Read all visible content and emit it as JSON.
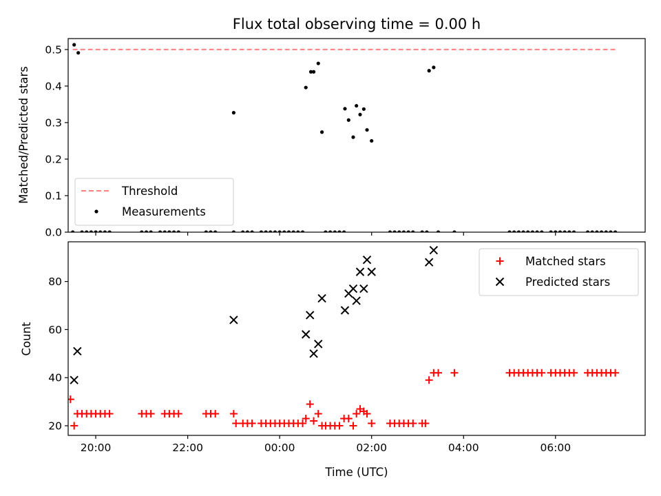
{
  "chart_data": [
    {
      "type": "scatter",
      "title": "Flux total observing time = 0.00 h",
      "xlabel": "",
      "ylabel": "Matched/Predicted stars",
      "xlim": [
        -4.6,
        7.95
      ],
      "ylim": [
        0.0,
        0.53
      ],
      "yticks": [
        0.0,
        0.1,
        0.2,
        0.3,
        0.4,
        0.5
      ],
      "ytick_labels": [
        "0.0",
        "0.1",
        "0.2",
        "0.3",
        "0.4",
        "0.5"
      ],
      "xticks": [
        -4,
        -2,
        0,
        2,
        4,
        6
      ],
      "grid": false,
      "legend_position": "lower-left",
      "threshold": {
        "name": "Threshold",
        "y": 0.5,
        "x_range": [
          -4.5,
          7.3
        ],
        "color": "#ff7f7f",
        "style": "dashed"
      },
      "series": [
        {
          "name": "Measurements",
          "color": "#000000",
          "marker": "dot",
          "points": [
            [
              -4.47,
              0.513
            ],
            [
              -4.38,
              0.491
            ],
            [
              -1.0,
              0.327
            ],
            [
              0.57,
              0.396
            ],
            [
              0.68,
              0.439
            ],
            [
              0.74,
              0.439
            ],
            [
              0.84,
              0.462
            ],
            [
              0.92,
              0.274
            ],
            [
              1.42,
              0.338
            ],
            [
              1.5,
              0.307
            ],
            [
              1.6,
              0.26
            ],
            [
              1.67,
              0.346
            ],
            [
              1.75,
              0.322
            ],
            [
              1.83,
              0.337
            ],
            [
              1.9,
              0.28
            ],
            [
              2.0,
              0.25
            ],
            [
              3.25,
              0.442
            ],
            [
              3.35,
              0.451
            ],
            [
              -4.5,
              0.0
            ],
            [
              -4.3,
              0.0
            ],
            [
              -4.2,
              0.0
            ],
            [
              -4.1,
              0.0
            ],
            [
              -4.0,
              0.0
            ],
            [
              -3.9,
              0.0
            ],
            [
              -3.8,
              0.0
            ],
            [
              -3.7,
              0.0
            ],
            [
              -3.0,
              0.0
            ],
            [
              -2.9,
              0.0
            ],
            [
              -2.8,
              0.0
            ],
            [
              -2.6,
              0.0
            ],
            [
              -2.5,
              0.0
            ],
            [
              -2.4,
              0.0
            ],
            [
              -2.3,
              0.0
            ],
            [
              -2.2,
              0.0
            ],
            [
              -1.6,
              0.0
            ],
            [
              -1.5,
              0.0
            ],
            [
              -1.4,
              0.0
            ],
            [
              -1.0,
              0.0
            ],
            [
              -0.8,
              0.0
            ],
            [
              -0.7,
              0.0
            ],
            [
              -0.6,
              0.0
            ],
            [
              -0.4,
              0.0
            ],
            [
              -0.3,
              0.0
            ],
            [
              -0.2,
              0.0
            ],
            [
              -0.1,
              0.0
            ],
            [
              0.0,
              0.0
            ],
            [
              0.1,
              0.0
            ],
            [
              0.2,
              0.0
            ],
            [
              0.3,
              0.0
            ],
            [
              0.4,
              0.0
            ],
            [
              0.5,
              0.0
            ],
            [
              1.0,
              0.0
            ],
            [
              1.1,
              0.0
            ],
            [
              1.2,
              0.0
            ],
            [
              1.3,
              0.0
            ],
            [
              1.4,
              0.0
            ],
            [
              2.4,
              0.0
            ],
            [
              2.5,
              0.0
            ],
            [
              2.6,
              0.0
            ],
            [
              2.7,
              0.0
            ],
            [
              2.8,
              0.0
            ],
            [
              2.9,
              0.0
            ],
            [
              3.1,
              0.0
            ],
            [
              3.2,
              0.0
            ],
            [
              3.45,
              0.0
            ],
            [
              3.8,
              0.0
            ],
            [
              5.0,
              0.0
            ],
            [
              5.1,
              0.0
            ],
            [
              5.2,
              0.0
            ],
            [
              5.3,
              0.0
            ],
            [
              5.4,
              0.0
            ],
            [
              5.5,
              0.0
            ],
            [
              5.6,
              0.0
            ],
            [
              5.7,
              0.0
            ],
            [
              5.9,
              0.0
            ],
            [
              6.0,
              0.0
            ],
            [
              6.1,
              0.0
            ],
            [
              6.2,
              0.0
            ],
            [
              6.3,
              0.0
            ],
            [
              6.4,
              0.0
            ],
            [
              6.7,
              0.0
            ],
            [
              6.8,
              0.0
            ],
            [
              6.9,
              0.0
            ],
            [
              7.0,
              0.0
            ],
            [
              7.1,
              0.0
            ],
            [
              7.2,
              0.0
            ],
            [
              7.3,
              0.0
            ]
          ]
        }
      ]
    },
    {
      "type": "scatter",
      "title": "",
      "xlabel": "Time (UTC)",
      "ylabel": "Count",
      "xlim": [
        -4.6,
        7.95
      ],
      "ylim": [
        16,
        96.5
      ],
      "yticks": [
        20,
        40,
        60,
        80
      ],
      "ytick_labels": [
        "20",
        "40",
        "60",
        "80"
      ],
      "xticks": [
        -4,
        -2,
        0,
        2,
        4,
        6
      ],
      "xtick_labels": [
        "20:00",
        "22:00",
        "00:00",
        "02:00",
        "04:00",
        "06:00"
      ],
      "grid": false,
      "legend_position": "upper-right",
      "series": [
        {
          "name": "Matched stars",
          "color": "#ff0000",
          "marker": "plus",
          "points": [
            [
              -4.55,
              31
            ],
            [
              -4.47,
              20
            ],
            [
              -4.4,
              25
            ],
            [
              -4.3,
              25
            ],
            [
              -4.2,
              25
            ],
            [
              -4.1,
              25
            ],
            [
              -4.0,
              25
            ],
            [
              -3.9,
              25
            ],
            [
              -3.8,
              25
            ],
            [
              -3.7,
              25
            ],
            [
              -3.0,
              25
            ],
            [
              -2.9,
              25
            ],
            [
              -2.8,
              25
            ],
            [
              -2.5,
              25
            ],
            [
              -2.4,
              25
            ],
            [
              -2.3,
              25
            ],
            [
              -2.2,
              25
            ],
            [
              -1.6,
              25
            ],
            [
              -1.5,
              25
            ],
            [
              -1.4,
              25
            ],
            [
              -1.0,
              25
            ],
            [
              -0.95,
              21
            ],
            [
              -0.8,
              21
            ],
            [
              -0.7,
              21
            ],
            [
              -0.6,
              21
            ],
            [
              -0.4,
              21
            ],
            [
              -0.3,
              21
            ],
            [
              -0.2,
              21
            ],
            [
              -0.1,
              21
            ],
            [
              0.0,
              21
            ],
            [
              0.1,
              21
            ],
            [
              0.2,
              21
            ],
            [
              0.3,
              21
            ],
            [
              0.4,
              21
            ],
            [
              0.5,
              21
            ],
            [
              0.57,
              23
            ],
            [
              0.66,
              29
            ],
            [
              0.74,
              22
            ],
            [
              0.84,
              25
            ],
            [
              0.92,
              20
            ],
            [
              1.0,
              20
            ],
            [
              1.1,
              20
            ],
            [
              1.2,
              20
            ],
            [
              1.3,
              20
            ],
            [
              1.4,
              23
            ],
            [
              1.5,
              23
            ],
            [
              1.6,
              20
            ],
            [
              1.67,
              25
            ],
            [
              1.75,
              27
            ],
            [
              1.83,
              26
            ],
            [
              1.9,
              25
            ],
            [
              2.0,
              21
            ],
            [
              2.4,
              21
            ],
            [
              2.5,
              21
            ],
            [
              2.6,
              21
            ],
            [
              2.7,
              21
            ],
            [
              2.8,
              21
            ],
            [
              2.9,
              21
            ],
            [
              3.1,
              21
            ],
            [
              3.17,
              21
            ],
            [
              3.25,
              39
            ],
            [
              3.35,
              42
            ],
            [
              3.45,
              42
            ],
            [
              3.8,
              42
            ],
            [
              5.0,
              42
            ],
            [
              5.1,
              42
            ],
            [
              5.2,
              42
            ],
            [
              5.3,
              42
            ],
            [
              5.4,
              42
            ],
            [
              5.5,
              42
            ],
            [
              5.6,
              42
            ],
            [
              5.7,
              42
            ],
            [
              5.9,
              42
            ],
            [
              6.0,
              42
            ],
            [
              6.1,
              42
            ],
            [
              6.2,
              42
            ],
            [
              6.3,
              42
            ],
            [
              6.4,
              42
            ],
            [
              6.7,
              42
            ],
            [
              6.8,
              42
            ],
            [
              6.9,
              42
            ],
            [
              7.0,
              42
            ],
            [
              7.1,
              42
            ],
            [
              7.2,
              42
            ],
            [
              7.3,
              42
            ]
          ]
        },
        {
          "name": "Predicted stars",
          "color": "#000000",
          "marker": "x",
          "points": [
            [
              -4.47,
              39
            ],
            [
              -4.4,
              51
            ],
            [
              -1.0,
              64
            ],
            [
              0.57,
              58
            ],
            [
              0.66,
              66
            ],
            [
              0.74,
              50
            ],
            [
              0.84,
              54
            ],
            [
              0.92,
              73
            ],
            [
              1.42,
              68
            ],
            [
              1.5,
              75
            ],
            [
              1.6,
              77
            ],
            [
              1.67,
              72
            ],
            [
              1.75,
              84
            ],
            [
              1.83,
              77
            ],
            [
              1.9,
              89
            ],
            [
              2.0,
              84
            ],
            [
              3.25,
              88
            ],
            [
              3.35,
              93
            ]
          ]
        }
      ]
    }
  ]
}
